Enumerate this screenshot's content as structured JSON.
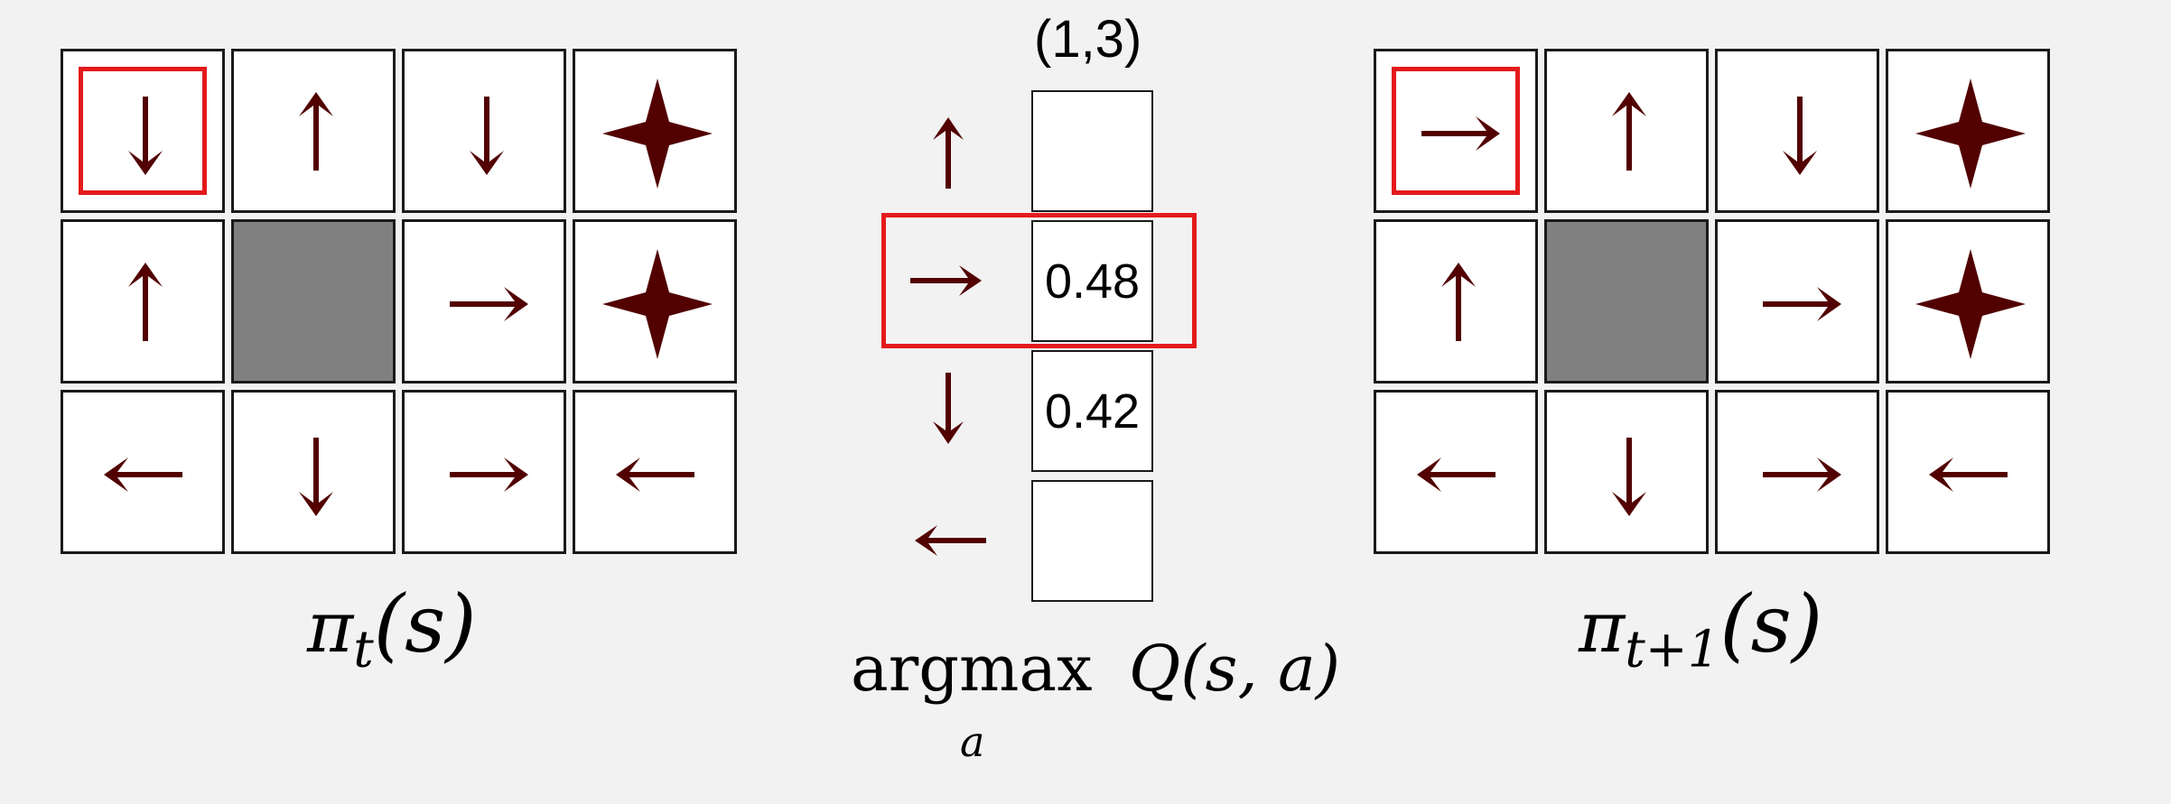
{
  "colors": {
    "arrow": "#520000",
    "highlight": "#e41a1c",
    "wall": "#808080",
    "cell_bg": "#ffffff",
    "page_bg": "#f2f2f2"
  },
  "left_grid": {
    "label_pi": "π",
    "label_sub": "t",
    "label_arg": "(s)",
    "cells": [
      [
        "down",
        "up",
        "down",
        "goal"
      ],
      [
        "up",
        "wall",
        "right",
        "goal"
      ],
      [
        "left",
        "down",
        "right",
        "left"
      ]
    ],
    "highlight": [
      0,
      0
    ]
  },
  "q_column": {
    "state": "(1,3)",
    "actions": [
      {
        "dir": "up",
        "value": ""
      },
      {
        "dir": "right",
        "value": "0.48"
      },
      {
        "dir": "down",
        "value": "0.42"
      },
      {
        "dir": "left",
        "value": ""
      }
    ],
    "selected_index": 1,
    "label_argmax": "argmax",
    "label_sub": "a",
    "label_q": "Q(s, a)"
  },
  "right_grid": {
    "label_pi": "π",
    "label_sub": "t+1",
    "label_arg": "(s)",
    "cells": [
      [
        "right",
        "up",
        "down",
        "goal"
      ],
      [
        "up",
        "wall",
        "right",
        "goal"
      ],
      [
        "left",
        "down",
        "right",
        "left"
      ]
    ],
    "highlight": [
      0,
      0
    ]
  }
}
